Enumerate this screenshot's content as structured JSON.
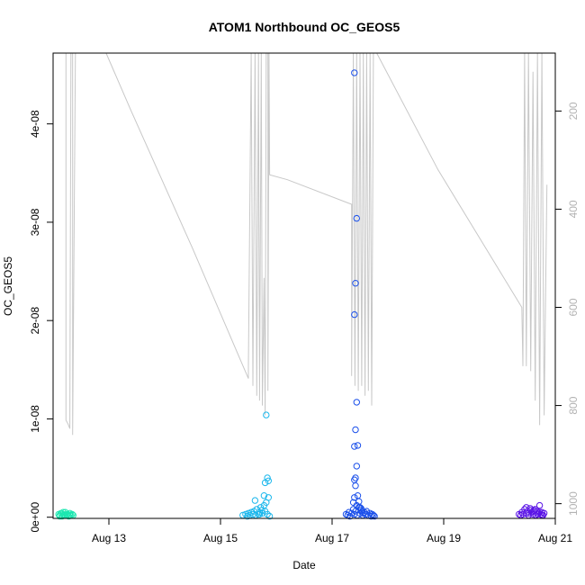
{
  "chart_data": {
    "type": "scatter",
    "title": "ATOM1 Northbound OC_GEOS5",
    "xlabel": "Date",
    "ylabel": "OC_GEOS5",
    "x_ticks": [
      {
        "label": "Aug 13",
        "value": 13
      },
      {
        "label": "Aug 15",
        "value": 15
      },
      {
        "label": "Aug 17",
        "value": 17
      },
      {
        "label": "Aug 19",
        "value": 19
      },
      {
        "label": "Aug 21",
        "value": 21
      }
    ],
    "y_ticks": [
      {
        "label": "0e+00",
        "value": 0
      },
      {
        "label": "1e-08",
        "value": 1e-08
      },
      {
        "label": "2e-08",
        "value": 2e-08
      },
      {
        "label": "3e-08",
        "value": 3e-08
      },
      {
        "label": "4e-08",
        "value": 4e-08
      }
    ],
    "y2_ticks": [
      {
        "label": "200",
        "value": 200
      },
      {
        "label": "400",
        "value": 400
      },
      {
        "label": "600",
        "value": 600
      },
      {
        "label": "800",
        "value": 800
      },
      {
        "label": "1000",
        "value": 1000
      }
    ],
    "xlim": [
      12.0,
      21.0
    ],
    "ylim": [
      -1.2e-10,
      4.72e-08
    ],
    "y2lim": [
      1030,
      82
    ],
    "y2_reversed": true,
    "grid": false,
    "pressure_line": {
      "color": "#c8c8c8",
      "points": [
        [
          12.23,
          80
        ],
        [
          12.23,
          830
        ],
        [
          12.27,
          838
        ],
        [
          12.3,
          847
        ],
        [
          12.32,
          82
        ],
        [
          12.35,
          82
        ],
        [
          12.35,
          860
        ],
        [
          12.4,
          80
        ],
        [
          12.45,
          80
        ],
        [
          12.95,
          80
        ],
        [
          13.4,
          200
        ],
        [
          14.5,
          480
        ],
        [
          15.5,
          745
        ],
        [
          15.5,
          720
        ],
        [
          15.55,
          80
        ],
        [
          15.58,
          760
        ],
        [
          15.62,
          80
        ],
        [
          15.65,
          780
        ],
        [
          15.68,
          80
        ],
        [
          15.7,
          790
        ],
        [
          15.73,
          80
        ],
        [
          15.75,
          800
        ],
        [
          15.78,
          540
        ],
        [
          15.8,
          820
        ],
        [
          15.82,
          80
        ],
        [
          15.85,
          80
        ],
        [
          15.85,
          770
        ],
        [
          15.87,
          80
        ],
        [
          15.88,
          330
        ],
        [
          16.2,
          340
        ],
        [
          17.35,
          390
        ],
        [
          17.35,
          740
        ],
        [
          17.38,
          80
        ],
        [
          17.41,
          760
        ],
        [
          17.44,
          80
        ],
        [
          17.47,
          770
        ],
        [
          17.5,
          80
        ],
        [
          17.53,
          760
        ],
        [
          17.56,
          80
        ],
        [
          17.59,
          780
        ],
        [
          17.62,
          80
        ],
        [
          17.65,
          770
        ],
        [
          17.68,
          80
        ],
        [
          17.71,
          800
        ],
        [
          17.74,
          80
        ],
        [
          17.78,
          80
        ],
        [
          17.8,
          80
        ],
        [
          18.9,
          320
        ],
        [
          20.4,
          600
        ],
        [
          20.42,
          720
        ],
        [
          20.45,
          80
        ],
        [
          20.48,
          720
        ],
        [
          20.52,
          80
        ],
        [
          20.56,
          730
        ],
        [
          20.6,
          120
        ],
        [
          20.64,
          790
        ],
        [
          20.68,
          80
        ],
        [
          20.72,
          840
        ],
        [
          20.76,
          80
        ],
        [
          20.8,
          820
        ],
        [
          20.85,
          350
        ]
      ]
    },
    "series": [
      {
        "color": "#1ce7b0",
        "x": [
          12.1,
          12.12,
          12.14,
          12.16,
          12.18,
          12.2,
          12.22,
          12.24,
          12.26,
          12.28,
          12.3,
          12.32,
          12.34,
          12.36,
          12.12,
          12.18,
          12.24,
          12.3
        ],
        "y": [
          3e-10,
          2e-10,
          4e-10,
          1e-10,
          3e-10,
          2e-10,
          5e-10,
          2e-10,
          3e-10,
          1e-10,
          4e-10,
          2e-10,
          3e-10,
          2e-10,
          1e-10,
          5e-10,
          3e-10,
          2e-10
        ]
      },
      {
        "color": "#1bb7ec",
        "x": [
          15.4,
          15.45,
          15.48,
          15.5,
          15.53,
          15.55,
          15.58,
          15.6,
          15.63,
          15.65,
          15.68,
          15.7,
          15.72,
          15.75,
          15.78,
          15.8,
          15.82,
          15.84,
          15.86,
          15.88,
          15.62,
          15.74,
          15.8,
          15.84,
          15.7,
          15.86,
          15.78,
          15.82
        ],
        "y": [
          2e-10,
          3e-10,
          1e-10,
          4e-10,
          2e-10,
          5e-10,
          3e-10,
          6e-10,
          2e-10,
          8e-10,
          3e-10,
          5e-10,
          1e-09,
          4e-10,
          1.2e-09,
          6e-10,
          1.5e-09,
          3e-10,
          2e-09,
          1e-10,
          1.7e-09,
          7e-10,
          3.5e-09,
          4e-09,
          3e-10,
          3.7e-09,
          2.2e-09,
          1.04e-08
        ]
      },
      {
        "color": "#1b50ea",
        "x": [
          17.25,
          17.28,
          17.3,
          17.32,
          17.35,
          17.38,
          17.4,
          17.42,
          17.45,
          17.48,
          17.5,
          17.52,
          17.55,
          17.58,
          17.6,
          17.62,
          17.65,
          17.68,
          17.7,
          17.72,
          17.74,
          17.76,
          17.38,
          17.4,
          17.42,
          17.44,
          17.46,
          17.48,
          17.5,
          17.52,
          17.54,
          17.56,
          17.4,
          17.42,
          17.44,
          17.46,
          17.4,
          17.42,
          17.44,
          17.4,
          17.42,
          17.44,
          17.4
        ],
        "y": [
          3e-10,
          2e-10,
          5e-10,
          1e-10,
          4e-10,
          8e-10,
          3e-10,
          6e-10,
          2e-10,
          1e-09,
          4e-10,
          7e-10,
          2e-10,
          5e-10,
          3e-10,
          6e-10,
          2e-10,
          4e-10,
          1e-10,
          3e-10,
          2e-10,
          1e-10,
          1.5e-09,
          2e-09,
          3.2e-09,
          1.2e-09,
          2.2e-09,
          1.6e-09,
          1e-09,
          9e-10,
          6e-10,
          4e-10,
          3.8e-09,
          4e-09,
          5.2e-09,
          7.3e-09,
          7.2e-09,
          8.9e-09,
          1.17e-08,
          2.06e-08,
          2.38e-08,
          3.04e-08,
          4.52e-08
        ]
      },
      {
        "color": "#5a14e6",
        "x": [
          20.35,
          20.38,
          20.4,
          20.42,
          20.45,
          20.48,
          20.5,
          20.52,
          20.55,
          20.58,
          20.6,
          20.62,
          20.65,
          20.68,
          20.7,
          20.72,
          20.74,
          20.76,
          20.78,
          20.8,
          20.48,
          20.56,
          20.64,
          20.72,
          20.52,
          20.6,
          20.68,
          20.76
        ],
        "y": [
          3e-10,
          2e-10,
          5e-10,
          3e-10,
          8e-10,
          4e-10,
          6e-10,
          2e-10,
          9e-10,
          5e-10,
          3e-10,
          7e-10,
          2e-10,
          6e-10,
          4e-10,
          1.2e-09,
          3e-10,
          5e-10,
          2e-10,
          4e-10,
          1e-09,
          7e-10,
          8e-10,
          5e-10,
          4e-10,
          6e-10,
          3e-10,
          2e-10
        ]
      }
    ]
  }
}
